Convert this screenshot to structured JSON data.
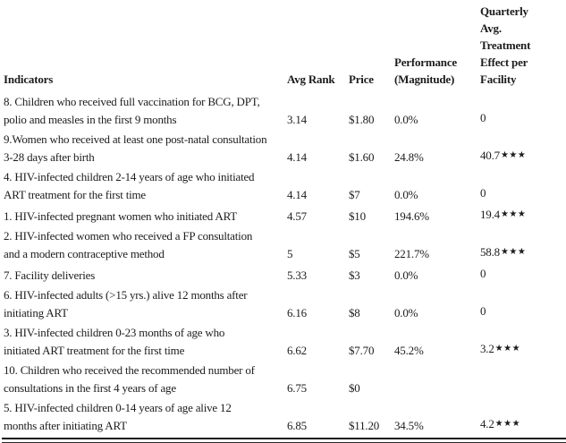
{
  "table": {
    "headers": {
      "indicators": "Indicators",
      "avg_rank": "Avg Rank",
      "price": "Price",
      "performance_lines": [
        "Performance",
        "(Magnitude)"
      ],
      "effect_lines": [
        "Quarterly",
        "Avg.",
        "Treatment",
        "Effect per",
        "Facility"
      ]
    },
    "rows": [
      {
        "lines": [
          "8. Children who received full vaccination for BCG, DPT,",
          "polio and measles in the first 9 months"
        ],
        "avg_rank": "3.14",
        "price": "$1.80",
        "performance": "0.0%",
        "effect": "0",
        "stars": ""
      },
      {
        "lines": [
          "9.Women who received at least one post-natal consultation",
          "3-28 days after birth"
        ],
        "avg_rank": "4.14",
        "price": "$1.60",
        "performance": "24.8%",
        "effect": "40.7",
        "stars": "★★★"
      },
      {
        "lines": [
          "4. HIV-infected children 2-14 years of age who initiated",
          "ART treatment for the first time"
        ],
        "avg_rank": "4.14",
        "price": "$7",
        "performance": "0.0%",
        "effect": "0",
        "stars": ""
      },
      {
        "lines": [
          "1. HIV-infected pregnant women who initiated ART"
        ],
        "avg_rank": "4.57",
        "price": "$10",
        "performance": "194.6%",
        "effect": "19.4",
        "stars": "★★★"
      },
      {
        "lines": [
          "2. HIV-infected women who received a FP consultation",
          "and a modern contraceptive method"
        ],
        "avg_rank": "5",
        "price": "$5",
        "performance": "221.7%",
        "effect": "58.8",
        "stars": "★★★"
      },
      {
        "lines": [
          "7. Facility deliveries"
        ],
        "avg_rank": "5.33",
        "price": "$3",
        "performance": "0.0%",
        "effect": "0",
        "stars": ""
      },
      {
        "lines": [
          "6. HIV-infected adults (>15 yrs.) alive 12 months after",
          "initiating ART"
        ],
        "avg_rank": "6.16",
        "price": "$8",
        "performance": "0.0%",
        "effect": "0",
        "stars": ""
      },
      {
        "lines": [
          "3. HIV-infected children 0-23 months of age who",
          "initiated ART treatment for the first time"
        ],
        "avg_rank": "6.62",
        "price": "$7.70",
        "performance": "45.2%",
        "effect": "3.2",
        "stars": "★★★"
      },
      {
        "lines": [
          "10. Children who received the recommended number of",
          "consultations in the first 4 years of age"
        ],
        "avg_rank": "6.75",
        "price": "$0",
        "performance": "",
        "effect": "",
        "stars": ""
      },
      {
        "lines": [
          "5. HIV-infected children 0-14 years of age alive 12",
          "months after initiating ART"
        ],
        "avg_rank": "6.85",
        "price": "$11.20",
        "performance": "34.5%",
        "effect": "4.2",
        "stars": "★★★"
      }
    ]
  }
}
